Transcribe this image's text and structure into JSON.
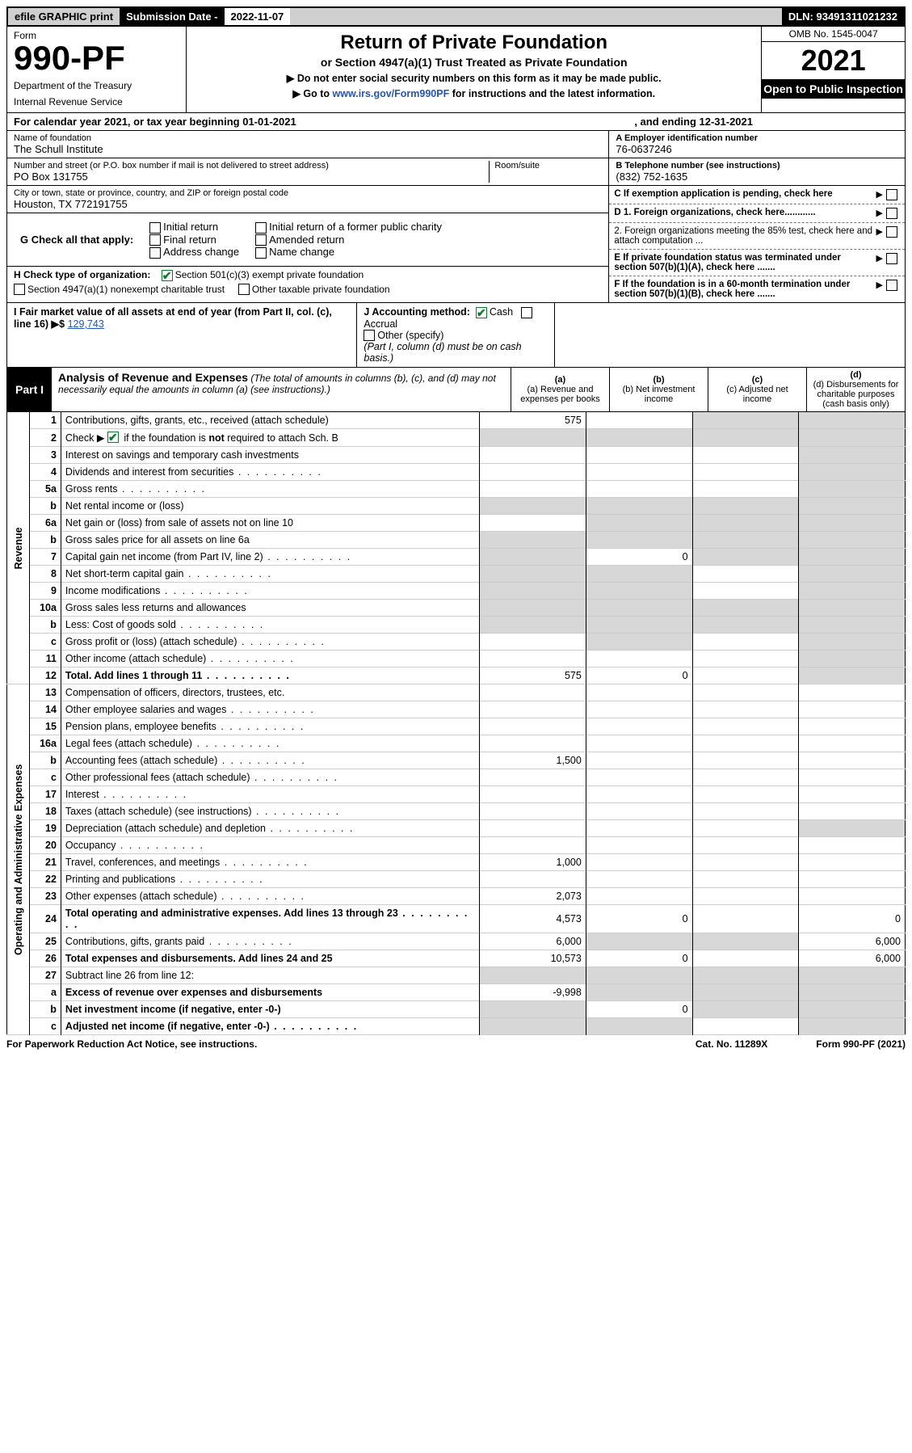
{
  "topbar": {
    "efile": "efile GRAPHIC print",
    "subdate_label": "Submission Date - ",
    "subdate": "2022-11-07",
    "dln": "DLN: 93491311021232"
  },
  "header": {
    "form_word": "Form",
    "form_no": "990-PF",
    "dept1": "Department of the Treasury",
    "dept2": "Internal Revenue Service",
    "title": "Return of Private Foundation",
    "subtitle": "or Section 4947(a)(1) Trust Treated as Private Foundation",
    "inst1": "▶ Do not enter social security numbers on this form as it may be made public.",
    "inst2_a": "▶ Go to ",
    "inst2_link": "www.irs.gov/Form990PF",
    "inst2_b": " for instructions and the latest information.",
    "omb": "OMB No. 1545-0047",
    "year": "2021",
    "open": "Open to Public Inspection"
  },
  "calendar": {
    "text": "For calendar year 2021, or tax year beginning 01-01-2021",
    "ending": ", and ending 12-31-2021"
  },
  "name_block": {
    "lbl": "Name of foundation",
    "val": "The Schull Institute"
  },
  "addr_block": {
    "lbl": "Number and street (or P.O. box number if mail is not delivered to street address)",
    "room": "Room/suite",
    "val": "PO Box 131755"
  },
  "city_block": {
    "lbl": "City or town, state or province, country, and ZIP or foreign postal code",
    "val": "Houston, TX  772191755"
  },
  "ein": {
    "lbl": "A Employer identification number",
    "val": "76-0637246"
  },
  "tel": {
    "lbl": "B Telephone number (see instructions)",
    "val": "(832) 752-1635"
  },
  "c_pending": "C If exemption application is pending, check here",
  "d1": "D 1. Foreign organizations, check here............",
  "d2": "2. Foreign organizations meeting the 85% test, check here and attach computation ...",
  "e": "E  If private foundation status was terminated under section 507(b)(1)(A), check here .......",
  "f": "F  If the foundation is in a 60-month termination under section 507(b)(1)(B), check here .......",
  "g": {
    "label": "G Check all that apply:",
    "opts": [
      "Initial return",
      "Final return",
      "Address change",
      "Initial return of a former public charity",
      "Amended return",
      "Name change"
    ]
  },
  "h": {
    "label": "H Check type of organization:",
    "opt1": "Section 501(c)(3) exempt private foundation",
    "opt2": "Section 4947(a)(1) nonexempt charitable trust",
    "opt3": "Other taxable private foundation"
  },
  "i": {
    "label": "I Fair market value of all assets at end of year (from Part II, col. (c), line 16) ▶$ ",
    "val": "129,743"
  },
  "j": {
    "label": "J Accounting method:",
    "cash": "Cash",
    "accr": "Accrual",
    "other": "Other (specify)",
    "note": "(Part I, column (d) must be on cash basis.)"
  },
  "part_i": {
    "tag": "Part I",
    "title": "Analysis of Revenue and Expenses",
    "note": "(The total of amounts in columns (b), (c), and (d) may not necessarily equal the amounts in column (a) (see instructions).)",
    "col_a": "(a) Revenue and expenses per books",
    "col_b": "(b) Net investment income",
    "col_c": "(c) Adjusted net income",
    "col_d": "(d) Disbursements for charitable purposes (cash basis only)"
  },
  "sections": {
    "revenue": "Revenue",
    "opex": "Operating and Administrative Expenses"
  },
  "rows": [
    {
      "n": "1",
      "d": "Contributions, gifts, grants, etc., received (attach schedule)",
      "a": "575",
      "b": "",
      "c": "g",
      "dd": "g"
    },
    {
      "n": "2",
      "d": "Check ▶ ☑ if the foundation is not required to attach Sch. B",
      "a": "g",
      "b": "g",
      "c": "g",
      "dd": "g",
      "bold_not": true
    },
    {
      "n": "3",
      "d": "Interest on savings and temporary cash investments",
      "a": "",
      "b": "",
      "c": "",
      "dd": "g"
    },
    {
      "n": "4",
      "d": "Dividends and interest from securities",
      "a": "",
      "b": "",
      "c": "",
      "dd": "g",
      "dots": true
    },
    {
      "n": "5a",
      "d": "Gross rents",
      "a": "",
      "b": "",
      "c": "",
      "dd": "g",
      "dots": true
    },
    {
      "n": "b",
      "d": "Net rental income or (loss)",
      "a": "g",
      "b": "g",
      "c": "g",
      "dd": "g",
      "inset": true
    },
    {
      "n": "6a",
      "d": "Net gain or (loss) from sale of assets not on line 10",
      "a": "",
      "b": "g",
      "c": "g",
      "dd": "g"
    },
    {
      "n": "b",
      "d": "Gross sales price for all assets on line 6a",
      "a": "g",
      "b": "g",
      "c": "g",
      "dd": "g",
      "inset": true
    },
    {
      "n": "7",
      "d": "Capital gain net income (from Part IV, line 2)",
      "a": "g",
      "b": "0",
      "c": "g",
      "dd": "g",
      "dots": true
    },
    {
      "n": "8",
      "d": "Net short-term capital gain",
      "a": "g",
      "b": "g",
      "c": "",
      "dd": "g",
      "dots": true
    },
    {
      "n": "9",
      "d": "Income modifications",
      "a": "g",
      "b": "g",
      "c": "",
      "dd": "g",
      "dots": true
    },
    {
      "n": "10a",
      "d": "Gross sales less returns and allowances",
      "a": "g",
      "b": "g",
      "c": "g",
      "dd": "g",
      "inset": true
    },
    {
      "n": "b",
      "d": "Less: Cost of goods sold",
      "a": "g",
      "b": "g",
      "c": "g",
      "dd": "g",
      "inset": true,
      "dots": true
    },
    {
      "n": "c",
      "d": "Gross profit or (loss) (attach schedule)",
      "a": "",
      "b": "g",
      "c": "",
      "dd": "g",
      "dots": true
    },
    {
      "n": "11",
      "d": "Other income (attach schedule)",
      "a": "",
      "b": "",
      "c": "",
      "dd": "g",
      "dots": true
    },
    {
      "n": "12",
      "d": "Total. Add lines 1 through 11",
      "a": "575",
      "b": "0",
      "c": "",
      "dd": "g",
      "dots": true,
      "bold": true
    },
    {
      "n": "13",
      "d": "Compensation of officers, directors, trustees, etc.",
      "a": "",
      "b": "",
      "c": "",
      "dd": ""
    },
    {
      "n": "14",
      "d": "Other employee salaries and wages",
      "a": "",
      "b": "",
      "c": "",
      "dd": "",
      "dots": true
    },
    {
      "n": "15",
      "d": "Pension plans, employee benefits",
      "a": "",
      "b": "",
      "c": "",
      "dd": "",
      "dots": true
    },
    {
      "n": "16a",
      "d": "Legal fees (attach schedule)",
      "a": "",
      "b": "",
      "c": "",
      "dd": "",
      "dots": true
    },
    {
      "n": "b",
      "d": "Accounting fees (attach schedule)",
      "a": "1,500",
      "b": "",
      "c": "",
      "dd": "",
      "dots": true
    },
    {
      "n": "c",
      "d": "Other professional fees (attach schedule)",
      "a": "",
      "b": "",
      "c": "",
      "dd": "",
      "dots": true
    },
    {
      "n": "17",
      "d": "Interest",
      "a": "",
      "b": "",
      "c": "",
      "dd": "",
      "dots": true
    },
    {
      "n": "18",
      "d": "Taxes (attach schedule) (see instructions)",
      "a": "",
      "b": "",
      "c": "",
      "dd": "",
      "dots": true
    },
    {
      "n": "19",
      "d": "Depreciation (attach schedule) and depletion",
      "a": "",
      "b": "",
      "c": "",
      "dd": "g",
      "dots": true
    },
    {
      "n": "20",
      "d": "Occupancy",
      "a": "",
      "b": "",
      "c": "",
      "dd": "",
      "dots": true
    },
    {
      "n": "21",
      "d": "Travel, conferences, and meetings",
      "a": "1,000",
      "b": "",
      "c": "",
      "dd": "",
      "dots": true
    },
    {
      "n": "22",
      "d": "Printing and publications",
      "a": "",
      "b": "",
      "c": "",
      "dd": "",
      "dots": true
    },
    {
      "n": "23",
      "d": "Other expenses (attach schedule)",
      "a": "2,073",
      "b": "",
      "c": "",
      "dd": "",
      "dots": true
    },
    {
      "n": "24",
      "d": "Total operating and administrative expenses. Add lines 13 through 23",
      "a": "4,573",
      "b": "0",
      "c": "",
      "dd": "0",
      "dots": true,
      "bold": true
    },
    {
      "n": "25",
      "d": "Contributions, gifts, grants paid",
      "a": "6,000",
      "b": "g",
      "c": "g",
      "dd": "6,000",
      "dots": true
    },
    {
      "n": "26",
      "d": "Total expenses and disbursements. Add lines 24 and 25",
      "a": "10,573",
      "b": "0",
      "c": "",
      "dd": "6,000",
      "bold": true
    },
    {
      "n": "27",
      "d": "Subtract line 26 from line 12:",
      "a": "g",
      "b": "g",
      "c": "g",
      "dd": "g"
    },
    {
      "n": "a",
      "d": "Excess of revenue over expenses and disbursements",
      "a": "-9,998",
      "b": "g",
      "c": "g",
      "dd": "g",
      "bold": true
    },
    {
      "n": "b",
      "d": "Net investment income (if negative, enter -0-)",
      "a": "g",
      "b": "0",
      "c": "g",
      "dd": "g",
      "bold": true
    },
    {
      "n": "c",
      "d": "Adjusted net income (if negative, enter -0-)",
      "a": "g",
      "b": "g",
      "c": "",
      "dd": "g",
      "bold": true,
      "dots": true
    }
  ],
  "footer": {
    "left": "For Paperwork Reduction Act Notice, see instructions.",
    "mid": "Cat. No. 11289X",
    "right": "Form 990-PF (2021)"
  },
  "colors": {
    "link": "#2255bb",
    "grey_bg": "#d7d7d7",
    "header_grey": "#cfcfcf"
  }
}
